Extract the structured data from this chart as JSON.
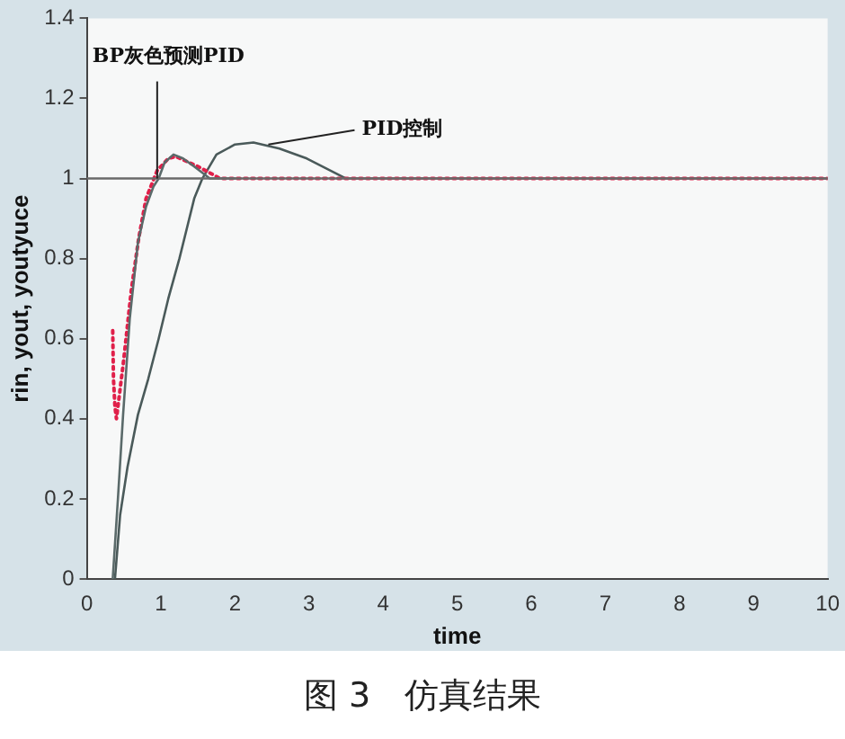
{
  "chart_data": {
    "type": "line",
    "xlabel": "time",
    "ylabel": "rin, yout, youtyuce",
    "xlim": [
      0,
      10
    ],
    "ylim": [
      0,
      1.4
    ],
    "xticks": [
      0,
      1,
      2,
      3,
      4,
      5,
      6,
      7,
      8,
      9,
      10
    ],
    "yticks": [
      0,
      0.2,
      0.4,
      0.6,
      0.8,
      1,
      1.2,
      1.4
    ],
    "grid": false,
    "legend": false,
    "marker": "none",
    "series": [
      {
        "color": "#6a6a6a",
        "line_style": "solid",
        "x": [
          0,
          10
        ],
        "values": [
          1,
          1
        ]
      },
      {
        "color": "#5a6a6a",
        "line_style": "solid",
        "x": [
          0.35,
          0.42,
          0.49,
          0.58,
          0.69,
          0.8,
          0.9,
          0.97,
          1.05,
          1.17,
          1.3,
          1.45,
          1.66,
          1.8,
          2
        ],
        "values": [
          0,
          0.2,
          0.41,
          0.65,
          0.84,
          0.93,
          0.98,
          1.0,
          1.04,
          1.06,
          1.05,
          1.03,
          1.0,
          1.0,
          1.0
        ]
      },
      {
        "color": "#e0204a",
        "line_style": "dotted",
        "x": [
          0.35,
          0.36,
          0.38,
          0.4,
          0.5,
          0.6,
          0.7,
          0.8,
          0.95,
          1.1,
          1.2,
          1.5,
          1.8,
          2,
          10
        ],
        "values": [
          0.62,
          0.5,
          0.43,
          0.4,
          0.55,
          0.72,
          0.85,
          0.95,
          1.02,
          1.05,
          1.055,
          1.03,
          1.0,
          1.0,
          1.0
        ]
      },
      {
        "color": "#4a5a5a",
        "line_style": "solid",
        "x": [
          0.38,
          0.45,
          0.55,
          0.69,
          0.83,
          0.97,
          1.1,
          1.25,
          1.45,
          1.56,
          1.75,
          2.0,
          2.25,
          2.6,
          2.97,
          3.5,
          4,
          10
        ],
        "values": [
          0,
          0.16,
          0.28,
          0.41,
          0.5,
          0.6,
          0.7,
          0.8,
          0.95,
          1.0,
          1.06,
          1.085,
          1.09,
          1.075,
          1.05,
          1.0,
          1.0,
          1.0
        ]
      }
    ],
    "annotations": [
      {
        "text": "BP灰色预测PID",
        "x": 0.95,
        "y": 1.0
      },
      {
        "text": "PID控制",
        "x": 2.45,
        "y": 1.085
      },
      "图 3　仿真结果"
    ]
  }
}
